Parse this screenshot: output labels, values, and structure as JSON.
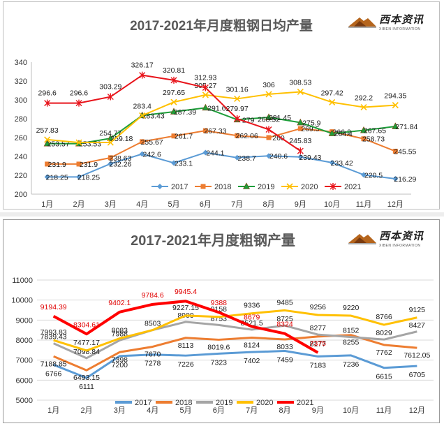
{
  "logo": {
    "name": "西本资讯",
    "sub": "XIBEN INFORMATION"
  },
  "chart_data": [
    {
      "type": "line",
      "title": "2017-2021年月度粗钢日均产量",
      "categories": [
        "1月",
        "2月",
        "3月",
        "4月",
        "5月",
        "6月",
        "7月",
        "8月",
        "9月",
        "10月",
        "11月",
        "12月"
      ],
      "ylim": [
        200,
        340
      ],
      "yticks": [
        200,
        220,
        240,
        260,
        280,
        300,
        320,
        340
      ],
      "legend": "bottom-right",
      "series": [
        {
          "name": "2017",
          "color": "#5b9bd5",
          "marker": "diamond",
          "values": [
            218.25,
            218.25,
            232.26,
            242.6,
            233.1,
            244.1,
            238.7,
            240.6,
            239.43,
            233.42,
            220.5,
            216.29
          ],
          "labels": [
            "218.25",
            "218.25",
            "232.26",
            "242.6",
            "233.1",
            "244.1",
            "238.7",
            "240.6",
            "239.43",
            "233.42",
            "220.5",
            "216.29"
          ]
        },
        {
          "name": "2018",
          "color": "#ed7d31",
          "marker": "square",
          "values": [
            231.9,
            231.9,
            238.63,
            255.67,
            261.7,
            267.33,
            262.06,
            260.0,
            269.5,
            266.2,
            258.73,
            245.55
          ],
          "labels": [
            "231.9",
            "231.9",
            "238.63",
            "255.67",
            "261.7",
            "267.33",
            "262.06",
            "260",
            "269.5",
            "266.2",
            "258.73",
            "245.55"
          ]
        },
        {
          "name": "2019",
          "color": "#1e9e3a",
          "marker": "triangle",
          "values": [
            253.57,
            253.53,
            259.18,
            283.43,
            287.39,
            291.6,
            279.0,
            281.45,
            275.9,
            264.4,
            267.65,
            271.84
          ],
          "labels": [
            "253.57",
            "253.53",
            "259.18",
            "283.43",
            "287.39",
            "291.6",
            "279",
            "281.45",
            "275.9",
            "264.4",
            "267.65",
            "271.84"
          ]
        },
        {
          "name": "2020",
          "color": "#ffc000",
          "marker": "x",
          "values": [
            257.83,
            254.77,
            254.77,
            283.4,
            297.65,
            305.27,
            301.16,
            306.0,
            308.53,
            297.42,
            292.2,
            294.35
          ],
          "labels": [
            "257.83",
            "",
            "254.77",
            "283.4",
            "297.65",
            "305.27",
            "301.16",
            "306",
            "308.53",
            "297.42",
            "292.2",
            "294.35"
          ]
        },
        {
          "name": "2021",
          "color": "#e8141b",
          "marker": "star",
          "values": [
            296.6,
            296.6,
            303.29,
            326.17,
            320.81,
            312.93,
            279.97,
            268.52,
            245.83,
            null,
            null,
            null
          ],
          "labels": [
            "296.6",
            "296.6",
            "303.29",
            "326.17",
            "320.81",
            "312.93",
            "279.97",
            "268.52",
            "245.83",
            "",
            "",
            ""
          ]
        }
      ]
    },
    {
      "type": "line",
      "title": "2017-2021年月度粗钢产量",
      "categories": [
        "1月",
        "2月",
        "3月",
        "4月",
        "5月",
        "6月",
        "7月",
        "8月",
        "9月",
        "10月",
        "11月",
        "12月"
      ],
      "ylim": [
        5000,
        11000
      ],
      "yticks": [
        5000,
        6000,
        7000,
        8000,
        9000,
        10000,
        11000
      ],
      "legend": "bottom",
      "series": [
        {
          "name": "2017",
          "color": "#5b9bd5",
          "values": [
            6766,
            6111,
            7200,
            7278,
            7226,
            7323,
            7402,
            7459,
            7183,
            7236,
            6615,
            6705
          ],
          "labels": [
            "6766",
            "6111",
            "7200",
            "7278",
            "7226",
            "7323",
            "7402",
            "7459",
            "7183",
            "7236",
            "6615",
            "6705"
          ]
        },
        {
          "name": "2018",
          "color": "#ed7d31",
          "values": [
            7188.85,
            6493.15,
            7398,
            7670,
            8113,
            8019.6,
            8124,
            8033,
            8177,
            8255,
            7762,
            7612.05
          ],
          "labels": [
            "7188.85",
            "6493.15",
            "7398",
            "7670",
            "8113",
            "8019.6",
            "8124",
            "8033",
            "8177",
            "8255",
            "7762",
            "7612.05"
          ]
        },
        {
          "name": "2019",
          "color": "#a5a5a5",
          "values": [
            7839.43,
            7098.84,
            7988,
            8503,
            8909,
            8753,
            8521.5,
            8725,
            8277,
            8152,
            8029,
            8427
          ],
          "labels": [
            "7839.43",
            "7098.84",
            "7988",
            "8503",
            "8909",
            "8753",
            "8521.5",
            "8725",
            "8277",
            "8152",
            "8029",
            "8427"
          ]
        },
        {
          "name": "2020",
          "color": "#ffc000",
          "values": [
            7993.83,
            7477.17,
            8083,
            8503,
            9227.15,
            9158,
            9336,
            9485,
            9256,
            9220,
            8766,
            9125
          ],
          "labels": [
            "7993.83",
            "7477.17",
            "8083",
            "",
            "9227.15",
            "9158",
            "9336",
            "9485",
            "9256",
            "9220",
            "8766",
            "9125"
          ]
        },
        {
          "name": "2021",
          "color": "#ff0000",
          "values": [
            9194.39,
            8304.61,
            9402.1,
            9784.6,
            9945.4,
            9388,
            8679,
            8324,
            7375,
            null,
            null,
            null
          ],
          "labels": [
            "9194.39",
            "8304.61",
            "9402.1",
            "9784.6",
            "9945.4",
            "9388",
            "8679",
            "8324",
            "7375",
            "",
            "",
            ""
          ]
        }
      ]
    }
  ]
}
